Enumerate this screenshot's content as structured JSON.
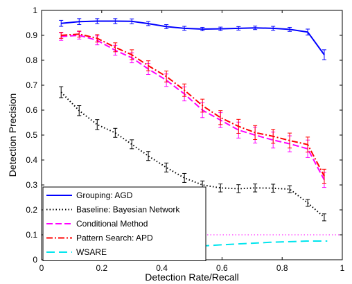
{
  "chart_data": {
    "type": "line",
    "title": "",
    "xlabel": "Detection Rate/Recall",
    "ylabel": "Detection Precision",
    "xlim": [
      0,
      1
    ],
    "ylim": [
      0,
      1
    ],
    "xticks": [
      0,
      0.2,
      0.4,
      0.6,
      0.8,
      1
    ],
    "yticks": [
      0,
      0.1,
      0.2,
      0.3,
      0.4,
      0.5,
      0.6,
      0.7,
      0.8,
      0.9,
      1
    ],
    "xtick_labels": [
      "0",
      "0.2",
      "0.4",
      "0.6",
      "0.8",
      "1"
    ],
    "ytick_labels": [
      "0",
      "0.1",
      "0.2",
      "0.3",
      "0.4",
      "0.5",
      "0.6",
      "0.7",
      "0.8",
      "0.9",
      "1"
    ],
    "grid": false,
    "legend_position": "bottom-left",
    "series": [
      {
        "name": "Grouping: AGD",
        "color": "#0000ff",
        "style": "solid",
        "x": [
          0.065,
          0.125,
          0.185,
          0.245,
          0.3,
          0.355,
          0.415,
          0.475,
          0.535,
          0.595,
          0.655,
          0.71,
          0.77,
          0.825,
          0.885,
          0.94
        ],
        "y": [
          0.948,
          0.955,
          0.957,
          0.957,
          0.956,
          0.947,
          0.935,
          0.928,
          0.925,
          0.926,
          0.928,
          0.93,
          0.928,
          0.924,
          0.913,
          0.822
        ],
        "err": [
          0.012,
          0.012,
          0.01,
          0.01,
          0.01,
          0.008,
          0.008,
          0.008,
          0.007,
          0.007,
          0.007,
          0.007,
          0.008,
          0.008,
          0.012,
          0.02
        ]
      },
      {
        "name": "Baseline: Bayesian Network",
        "color": "#000000",
        "style": "dotted",
        "x": [
          0.065,
          0.125,
          0.185,
          0.245,
          0.3,
          0.355,
          0.415,
          0.475,
          0.535,
          0.595,
          0.655,
          0.71,
          0.77,
          0.825,
          0.885,
          0.94
        ],
        "y": [
          0.672,
          0.598,
          0.542,
          0.509,
          0.463,
          0.416,
          0.37,
          0.328,
          0.3,
          0.288,
          0.285,
          0.288,
          0.287,
          0.283,
          0.228,
          0.17
        ],
        "err": [
          0.022,
          0.02,
          0.02,
          0.018,
          0.018,
          0.018,
          0.018,
          0.018,
          0.016,
          0.016,
          0.016,
          0.016,
          0.016,
          0.014,
          0.014,
          0.014
        ]
      },
      {
        "name": "Conditional Method",
        "color": "#ff00ff",
        "style": "dashed",
        "x": [
          0.065,
          0.125,
          0.185,
          0.245,
          0.3,
          0.355,
          0.415,
          0.475,
          0.535,
          0.595,
          0.655,
          0.71,
          0.77,
          0.825,
          0.885,
          0.94
        ],
        "y": [
          0.895,
          0.9,
          0.88,
          0.84,
          0.81,
          0.765,
          0.72,
          0.665,
          0.6,
          0.56,
          0.52,
          0.5,
          0.48,
          0.465,
          0.445,
          0.32
        ],
        "err": [
          0.015,
          0.015,
          0.018,
          0.02,
          0.02,
          0.022,
          0.025,
          0.028,
          0.03,
          0.03,
          0.032,
          0.032,
          0.032,
          0.032,
          0.035,
          0.03
        ]
      },
      {
        "name": "Pattern Search: APD",
        "color": "#ff0000",
        "style": "dashdot",
        "x": [
          0.065,
          0.125,
          0.185,
          0.245,
          0.3,
          0.355,
          0.415,
          0.475,
          0.535,
          0.595,
          0.655,
          0.71,
          0.77,
          0.825,
          0.885,
          0.94
        ],
        "y": [
          0.9,
          0.905,
          0.888,
          0.852,
          0.822,
          0.778,
          0.735,
          0.68,
          0.618,
          0.57,
          0.535,
          0.51,
          0.495,
          0.478,
          0.462,
          0.335
        ],
        "err": [
          0.012,
          0.012,
          0.015,
          0.018,
          0.02,
          0.02,
          0.022,
          0.025,
          0.026,
          0.028,
          0.028,
          0.028,
          0.028,
          0.03,
          0.03,
          0.028
        ]
      },
      {
        "name": "WSARE",
        "color": "#00e5ee",
        "style": "longdash",
        "x": [
          0.53,
          0.6,
          0.68,
          0.76,
          0.84,
          0.88,
          0.95
        ],
        "y": [
          0.055,
          0.06,
          0.065,
          0.07,
          0.073,
          0.075,
          0.075
        ],
        "err": []
      }
    ],
    "annotations": [
      {
        "type": "hline",
        "y": 0.1,
        "x_from": 0.53,
        "x_to": 1.0,
        "color": "#ff00ff",
        "style": "dotted"
      }
    ]
  }
}
